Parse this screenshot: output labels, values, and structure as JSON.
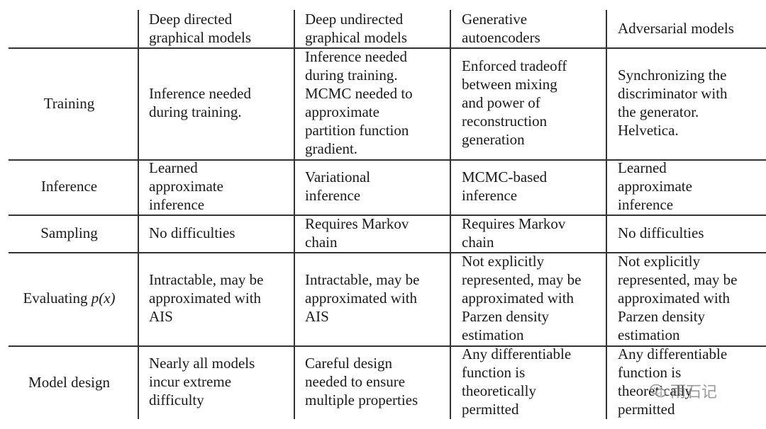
{
  "headers": [
    "",
    "Deep directed\ngraphical models",
    "Deep undirected\ngraphical models",
    "Generative\nautoencoders",
    "Adversarial models"
  ],
  "rows": [
    {
      "label": "Training",
      "cells": [
        "Inference needed\nduring training.",
        "Inference needed\nduring training.\nMCMC needed to\napproximate\npartition function\ngradient.",
        "Enforced tradeoff\nbetween mixing\nand power of\nreconstruction\ngeneration",
        "Synchronizing the\ndiscriminator with\nthe generator.\nHelvetica."
      ]
    },
    {
      "label": "Inference",
      "cells": [
        "Learned\napproximate\ninference",
        "Variational\ninference",
        "MCMC-based\ninference",
        "Learned\napproximate\ninference"
      ]
    },
    {
      "label": "Sampling",
      "cells": [
        "No difficulties",
        "Requires Markov\nchain",
        "Requires Markov\nchain",
        "No difficulties"
      ]
    },
    {
      "label_text": "Evaluating ",
      "label_math": "p(x)",
      "cells": [
        "Intractable, may be\napproximated with\nAIS",
        "Intractable, may be\napproximated with\nAIS",
        "Not explicitly\nrepresented, may be\napproximated with\nParzen density\nestimation",
        "Not explicitly\nrepresented, may be\napproximated with\nParzen density\nestimation"
      ]
    },
    {
      "label": "Model design",
      "cells": [
        "Nearly all models\nincur extreme\ndifficulty",
        "Careful design\nneeded to ensure\nmultiple properties",
        "Any differentiable\nfunction is\ntheoretically\npermitted",
        "Any differentiable\nfunction is\ntheoretically\npermitted"
      ]
    }
  ],
  "watermark": {
    "text": "雨石记",
    "icon": "wechat-icon"
  }
}
